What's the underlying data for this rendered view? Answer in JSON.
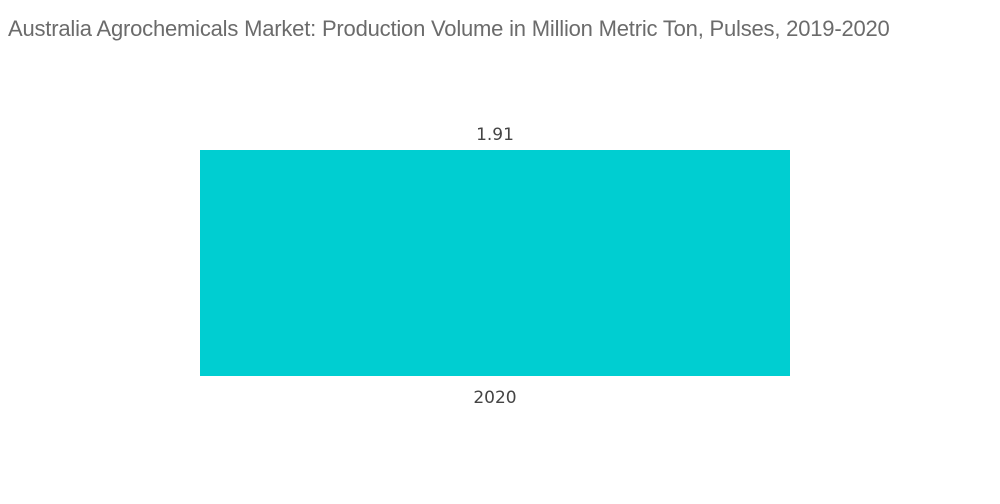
{
  "chart_data": {
    "type": "bar",
    "title": "Australia Agrochemicals Market: Production Volume in Million Metric Ton, Pulses, 2019-2020",
    "categories": [
      "2020"
    ],
    "values": [
      1.91
    ],
    "data_labels": [
      "1.91"
    ],
    "xlabel": "",
    "ylabel": "",
    "ylim": [
      0,
      1.91
    ],
    "grid": false,
    "legend": "none",
    "colors": {
      "bar": "#00CED1",
      "title": "#6b6b6b",
      "text": "#444444"
    }
  }
}
